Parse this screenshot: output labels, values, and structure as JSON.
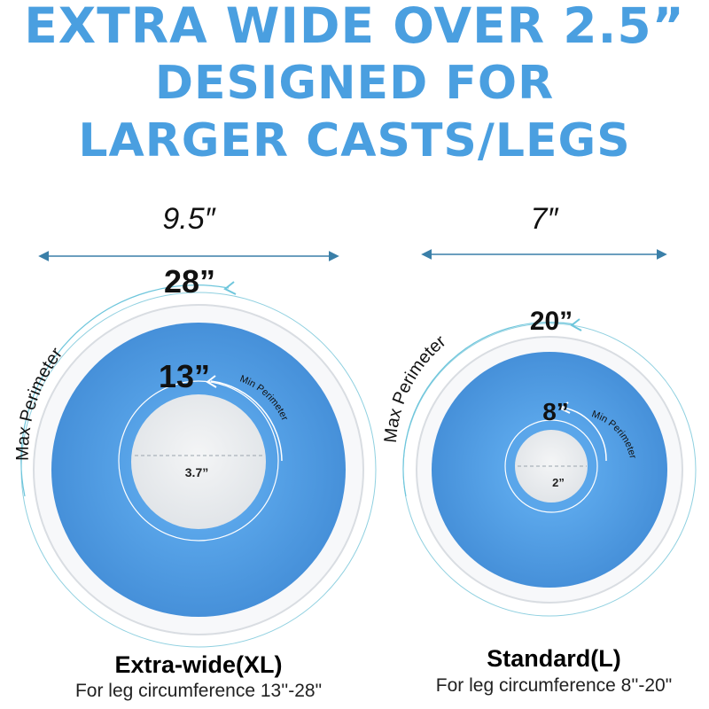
{
  "headline": {
    "line1": "EXTRA WIDE OVER 2.5”",
    "line2": "DESIGNED FOR",
    "line3": "LARGER CASTS/LEGS"
  },
  "xl": {
    "width": "9.5″",
    "max_size": "28”",
    "max_label": "Max Perimeter",
    "min_size": "13”",
    "min_label": "Min Perimeter",
    "hole": "3.7”",
    "name": "Extra-wide(XL)",
    "range": "For leg circumference 13''-28\""
  },
  "l": {
    "width": "7″",
    "max_size": "20”",
    "max_label": "Max Perimeter",
    "min_size": "8”",
    "min_label": "Min Perimeter",
    "hole": "2”",
    "name": "Standard(L)",
    "range": "For leg circumference 8''-20\""
  },
  "colors": {
    "headline": "#4a9fe0",
    "ring_blue": "#4f9be4",
    "arrow": "#3a7fa8"
  }
}
